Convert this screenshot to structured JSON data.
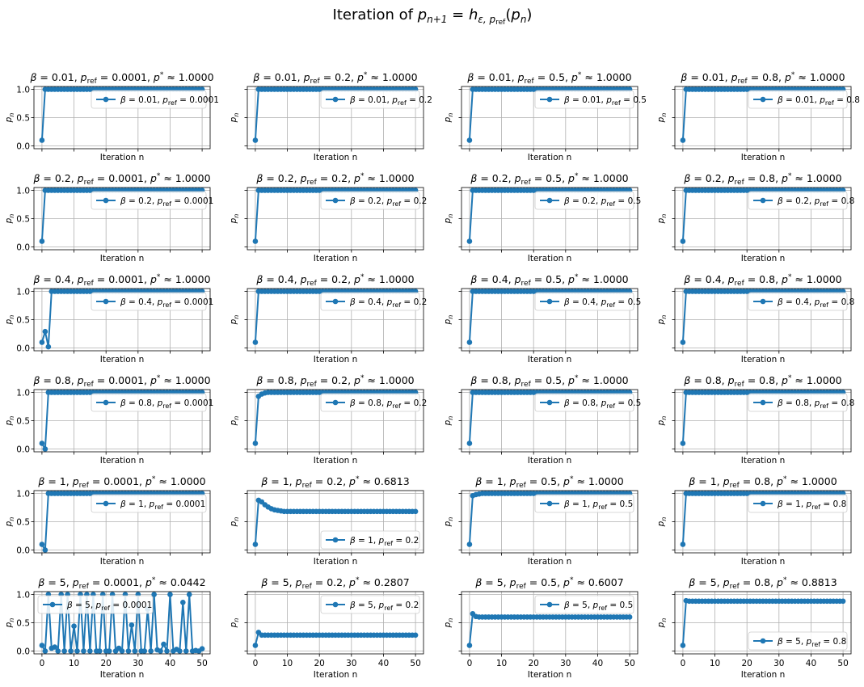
{
  "suptitle": "Iteration of p_{n+1} = h_{ε, p_ref}(p_n)",
  "chart_data": {
    "type": "line",
    "grid": true,
    "rows": 6,
    "cols": 4,
    "xlim": [
      -2.5,
      52.5
    ],
    "ylim": [
      -0.05,
      1.05
    ],
    "xticks": [
      0,
      10,
      20,
      30,
      40,
      50
    ],
    "yticks": [
      0.0,
      0.5,
      1.0
    ],
    "ytick_labels": [
      "0.0",
      "0.5",
      "1.0"
    ],
    "xlabel": "Iteration n",
    "ylabel": "p_n",
    "line_color": "#1f77b4",
    "n_iterations": 51,
    "panels": [
      {
        "beta": "0.01",
        "pref": "0.0001",
        "pstar": "1.0000",
        "kind": "conv",
        "init": [
          0.1,
          1.0
        ],
        "target": 1.0,
        "legend": "top-right"
      },
      {
        "beta": "0.01",
        "pref": "0.2",
        "pstar": "1.0000",
        "kind": "conv",
        "init": [
          0.1,
          1.0
        ],
        "target": 1.0,
        "legend": "top-right"
      },
      {
        "beta": "0.01",
        "pref": "0.5",
        "pstar": "1.0000",
        "kind": "conv",
        "init": [
          0.1,
          1.0
        ],
        "target": 1.0,
        "legend": "top-right"
      },
      {
        "beta": "0.01",
        "pref": "0.8",
        "pstar": "1.0000",
        "kind": "conv",
        "init": [
          0.1,
          1.0
        ],
        "target": 1.0,
        "legend": "top-right"
      },
      {
        "beta": "0.2",
        "pref": "0.0001",
        "pstar": "1.0000",
        "kind": "conv",
        "init": [
          0.1,
          1.0
        ],
        "target": 1.0,
        "legend": "top-right"
      },
      {
        "beta": "0.2",
        "pref": "0.2",
        "pstar": "1.0000",
        "kind": "conv",
        "init": [
          0.1,
          1.0
        ],
        "target": 1.0,
        "legend": "top-right"
      },
      {
        "beta": "0.2",
        "pref": "0.5",
        "pstar": "1.0000",
        "kind": "conv",
        "init": [
          0.1,
          1.0
        ],
        "target": 1.0,
        "legend": "top-right"
      },
      {
        "beta": "0.2",
        "pref": "0.8",
        "pstar": "1.0000",
        "kind": "conv",
        "init": [
          0.1,
          1.0
        ],
        "target": 1.0,
        "legend": "top-right"
      },
      {
        "beta": "0.4",
        "pref": "0.0001",
        "pstar": "1.0000",
        "kind": "conv",
        "init": [
          0.1,
          0.29,
          0.02,
          1.0
        ],
        "target": 1.0,
        "legend": "top-right"
      },
      {
        "beta": "0.4",
        "pref": "0.2",
        "pstar": "1.0000",
        "kind": "conv",
        "init": [
          0.1,
          1.0
        ],
        "target": 1.0,
        "legend": "top-right"
      },
      {
        "beta": "0.4",
        "pref": "0.5",
        "pstar": "1.0000",
        "kind": "conv",
        "init": [
          0.1,
          1.0
        ],
        "target": 1.0,
        "legend": "top-right"
      },
      {
        "beta": "0.4",
        "pref": "0.8",
        "pstar": "1.0000",
        "kind": "conv",
        "init": [
          0.1,
          1.0
        ],
        "target": 1.0,
        "legend": "top-right"
      },
      {
        "beta": "0.8",
        "pref": "0.0001",
        "pstar": "1.0000",
        "kind": "conv",
        "init": [
          0.1,
          0.0,
          1.0
        ],
        "target": 1.0,
        "legend": "top-right"
      },
      {
        "beta": "0.8",
        "pref": "0.2",
        "pstar": "1.0000",
        "kind": "conv",
        "init": [
          0.1,
          0.93,
          0.97,
          0.99
        ],
        "target": 1.0,
        "legend": "top-right"
      },
      {
        "beta": "0.8",
        "pref": "0.5",
        "pstar": "1.0000",
        "kind": "conv",
        "init": [
          0.1,
          1.0
        ],
        "target": 1.0,
        "legend": "top-right"
      },
      {
        "beta": "0.8",
        "pref": "0.8",
        "pstar": "1.0000",
        "kind": "conv",
        "init": [
          0.1,
          1.0
        ],
        "target": 1.0,
        "legend": "top-right"
      },
      {
        "beta": "1",
        "pref": "0.0001",
        "pstar": "1.0000",
        "kind": "conv",
        "init": [
          0.1,
          0.0,
          1.0
        ],
        "target": 1.0,
        "legend": "top-right"
      },
      {
        "beta": "1",
        "pref": "0.2",
        "pstar": "0.6813",
        "kind": "decay",
        "init": [
          0.1,
          0.88,
          0.85,
          0.8,
          0.76,
          0.73,
          0.71,
          0.7,
          0.69
        ],
        "target": 0.6813,
        "legend": "bottom-right"
      },
      {
        "beta": "1",
        "pref": "0.5",
        "pstar": "1.0000",
        "kind": "conv",
        "init": [
          0.1,
          0.96,
          0.98,
          0.99,
          1.0
        ],
        "target": 1.0,
        "legend": "top-right"
      },
      {
        "beta": "1",
        "pref": "0.8",
        "pstar": "1.0000",
        "kind": "conv",
        "init": [
          0.1,
          1.0
        ],
        "target": 1.0,
        "legend": "top-right"
      },
      {
        "beta": "5",
        "pref": "0.0001",
        "pstar": "0.0442",
        "kind": "chaos",
        "values": [
          0.1,
          0.0,
          1.0,
          0.05,
          0.07,
          0.0,
          1.0,
          0.0,
          1.0,
          0.0,
          0.44,
          0.0,
          1.0,
          0.0,
          1.0,
          0.0,
          1.0,
          0.0,
          0.0,
          1.0,
          0.0,
          0.0,
          1.0,
          0.0,
          0.05,
          0.0,
          1.0,
          0.0,
          0.46,
          0.0,
          1.0,
          0.0,
          0.0,
          0.74,
          0.0,
          1.0,
          0.02,
          0.0,
          0.12,
          0.0,
          1.0,
          0.0,
          0.03,
          0.0,
          0.86,
          0.0,
          1.0,
          0.0,
          0.01,
          0.0,
          0.04
        ],
        "target": 0.0442,
        "legend": "top-left"
      },
      {
        "beta": "5",
        "pref": "0.2",
        "pstar": "0.2807",
        "kind": "decay",
        "init": [
          0.1,
          0.33
        ],
        "target": 0.2807,
        "legend": "top-right"
      },
      {
        "beta": "5",
        "pref": "0.5",
        "pstar": "0.6007",
        "kind": "decay",
        "init": [
          0.1,
          0.66,
          0.61
        ],
        "target": 0.6007,
        "legend": "top-right"
      },
      {
        "beta": "5",
        "pref": "0.8",
        "pstar": "0.8813",
        "kind": "decay",
        "init": [
          0.1,
          0.89
        ],
        "target": 0.8813,
        "legend": "bottom-right"
      }
    ]
  }
}
